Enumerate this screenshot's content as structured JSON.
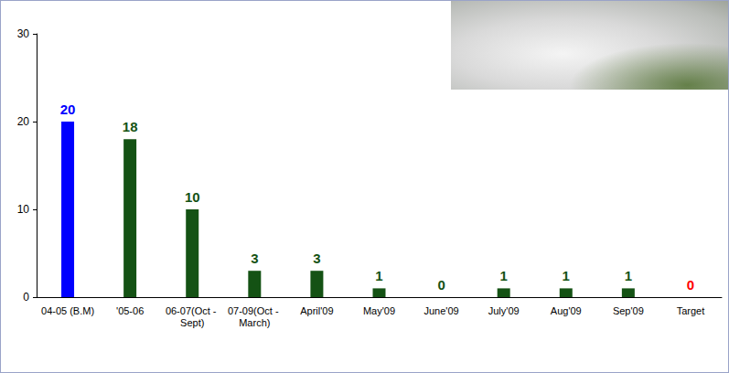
{
  "chart_data": {
    "type": "bar",
    "categories": [
      "04-05 (B.M)",
      "'05-06",
      "06-07(Oct - Sept)",
      "07-09(Oct - March)",
      "April'09",
      "May'09",
      "June'09",
      "July'09",
      "Aug'09",
      "Sep'09",
      "Target"
    ],
    "values": [
      20,
      18,
      10,
      3,
      3,
      1,
      0,
      1,
      1,
      1,
      0
    ],
    "colors": [
      "#0000ff",
      "#145214",
      "#145214",
      "#145214",
      "#145214",
      "#145214",
      "#145214",
      "#145214",
      "#145214",
      "#145214",
      "#ff0000"
    ],
    "ylim": [
      0,
      30
    ],
    "yticks": [
      0,
      10,
      20,
      30
    ],
    "grid": false,
    "data_labels": true
  }
}
